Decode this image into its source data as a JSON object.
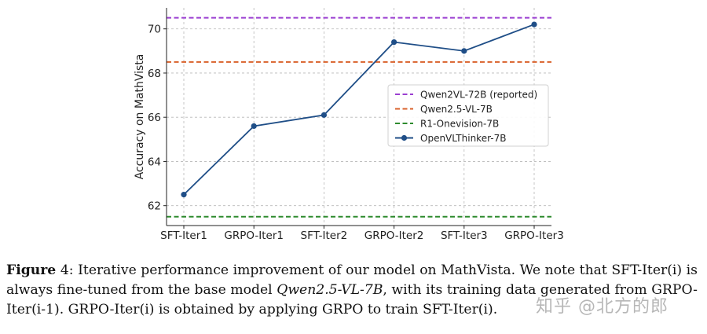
{
  "chart_data": {
    "type": "line",
    "categories": [
      "SFT-Iter1",
      "GRPO-Iter1",
      "SFT-Iter2",
      "GRPO-Iter2",
      "SFT-Iter3",
      "GRPO-Iter3"
    ],
    "series": [
      {
        "name": "OpenVLThinker-7B",
        "values": [
          62.5,
          65.6,
          66.1,
          69.4,
          69.0,
          70.2
        ],
        "color": "#1f4e87",
        "style": "solid-marker"
      }
    ],
    "reference_lines": [
      {
        "name": "Qwen2VL-72B (reported)",
        "value": 70.5,
        "color": "#9b3fd1"
      },
      {
        "name": "Qwen2.5-VL-7B",
        "value": 68.5,
        "color": "#d9622b"
      },
      {
        "name": "R1-Onevision-7B",
        "value": 61.5,
        "color": "#2e8b2e"
      }
    ],
    "legend_order": [
      "Qwen2VL-72B (reported)",
      "Qwen2.5-VL-7B",
      "R1-Onevision-7B",
      "OpenVLThinker-7B"
    ],
    "xlabel": "",
    "ylabel": "Accuracy on MathVista",
    "ylim": [
      61.1,
      70.95
    ],
    "yticks": [
      62,
      64,
      66,
      68,
      70
    ],
    "grid": true,
    "legend_position": "center-right"
  },
  "caption": {
    "label": "Figure",
    "number": "4",
    "text_1": ": Iterative performance improvement of our model on MathVista. We note that SFT-Iter(i) is always fine-tuned from the base model ",
    "model_name": "Qwen2.5-VL-7B",
    "text_2": ", with its training data generated from GRPO-Iter(i-1). GRPO-Iter(i) is obtained by applying GRPO to train SFT-Iter(i)."
  },
  "watermark": "知乎 @北方的郎"
}
